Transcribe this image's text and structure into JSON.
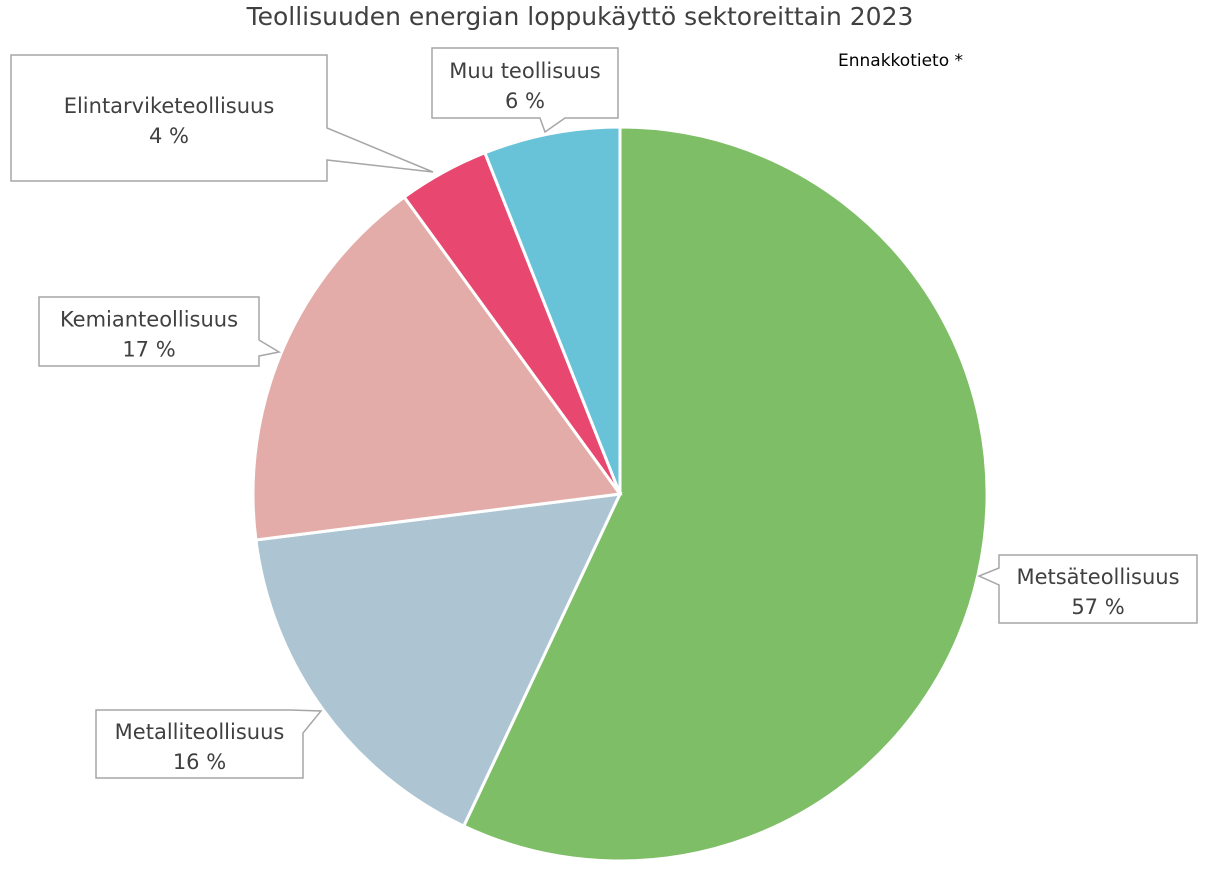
{
  "chart_data": {
    "type": "pie",
    "title": "Teollisuuden energian loppukäyttö sektoreittain 2023",
    "annotation": "Ennakkotieto *",
    "start_angle": "12 o'clock",
    "direction": "clockwise",
    "slices": [
      {
        "label": "Metsäteollisuus",
        "value": 57,
        "value_label": "57 %",
        "color": "#7dbe67"
      },
      {
        "label": "Metalliteollisuus",
        "value": 16,
        "value_label": "16 %",
        "color": "#adc5d2"
      },
      {
        "label": "Kemianteollisuus",
        "value": 17,
        "value_label": "17 %",
        "color": "#e4aca8"
      },
      {
        "label": "Elintarviketeollisuus",
        "value": 4,
        "value_label": "4 %",
        "color": "#e8486f"
      },
      {
        "label": "Muu teollisuus",
        "value": 6,
        "value_label": "6 %",
        "color": "#69c3d8"
      }
    ]
  }
}
